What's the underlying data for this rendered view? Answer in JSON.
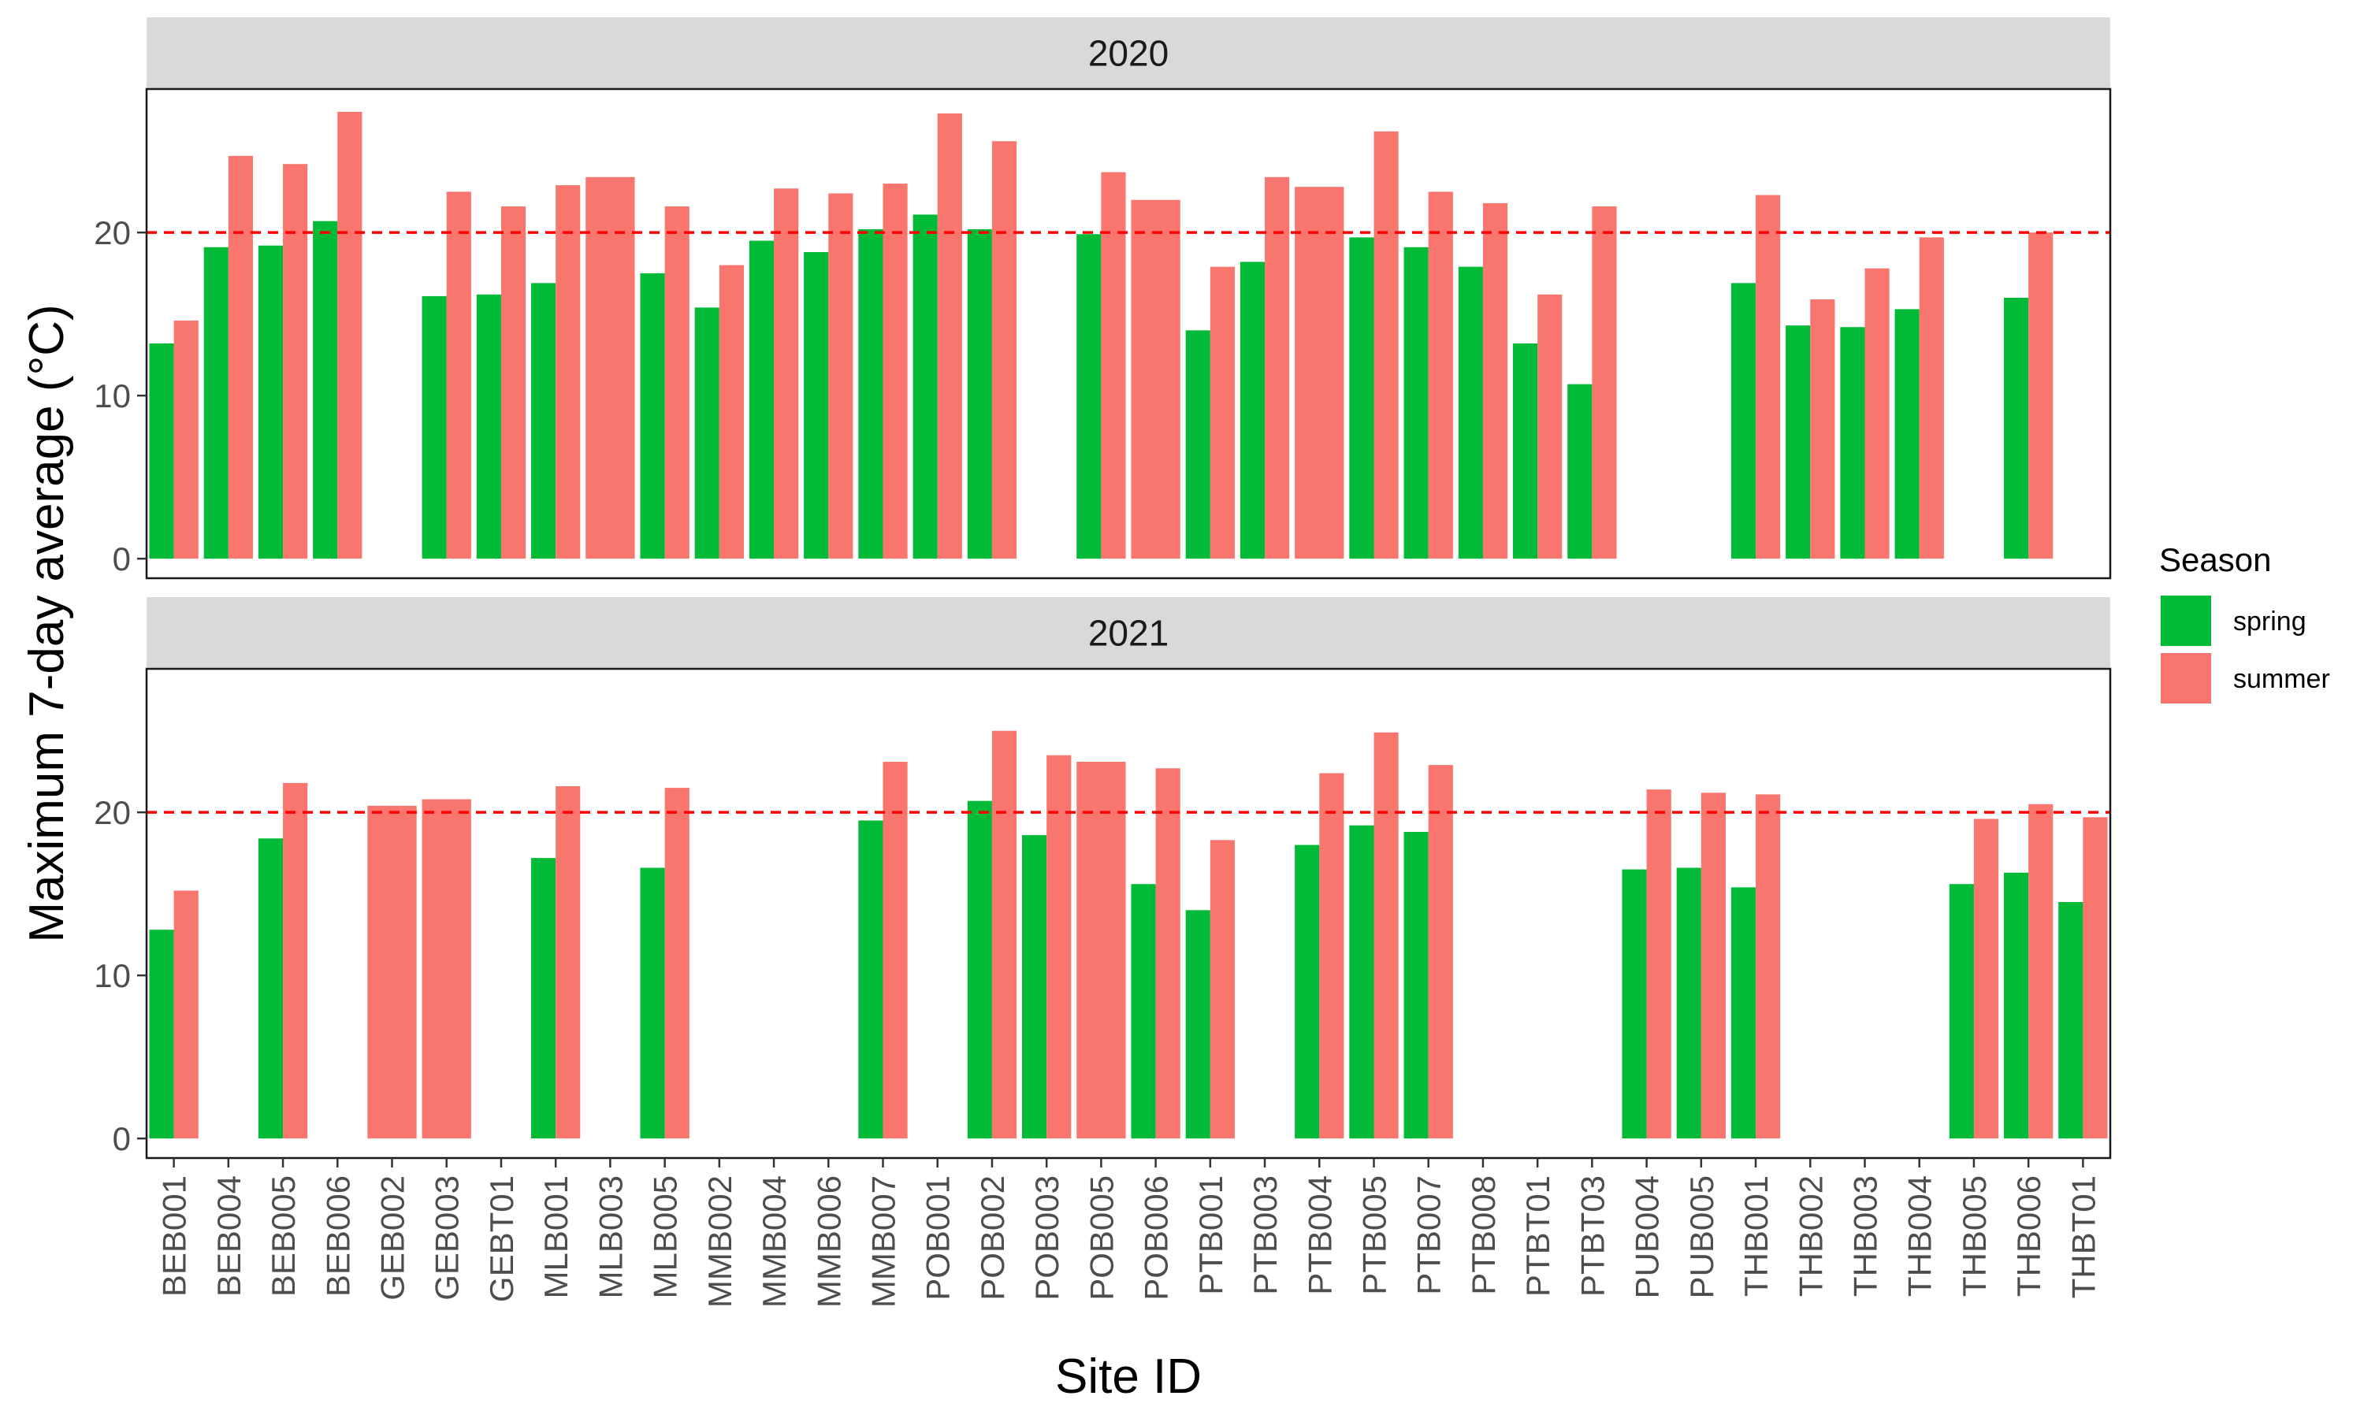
{
  "chart_data": {
    "type": "bar",
    "title": "",
    "xlabel": "Site ID",
    "ylabel": "Maximum 7-day average (°C)",
    "ylim": [
      -1.2,
      28.8
    ],
    "yticks": [
      0,
      10,
      20
    ],
    "reference_line": {
      "y": 20,
      "color": "#ff0000",
      "style": "dashed"
    },
    "legend": {
      "title": "Season",
      "placement": "right",
      "items": [
        {
          "name": "spring",
          "color": "#00ba38"
        },
        {
          "name": "summer",
          "color": "#f8766d"
        }
      ]
    },
    "categories": [
      "BEB001",
      "BEB004",
      "BEB005",
      "BEB006",
      "GEB002",
      "GEB003",
      "GEBT01",
      "MLB001",
      "MLB003",
      "MLB005",
      "MMB002",
      "MMB004",
      "MMB006",
      "MMB007",
      "POB001",
      "POB002",
      "POB003",
      "POB005",
      "POB006",
      "PTB001",
      "PTB003",
      "PTB004",
      "PTB005",
      "PTB007",
      "PTB008",
      "PTBT01",
      "PTBT03",
      "PUB004",
      "PUB005",
      "THB001",
      "THB002",
      "THB003",
      "THB004",
      "THB005",
      "THB006",
      "THBT01"
    ],
    "panels": [
      {
        "label": "2020",
        "series": [
          {
            "name": "spring",
            "values": [
              13.2,
              19.1,
              19.2,
              20.7,
              null,
              16.1,
              16.2,
              16.9,
              null,
              17.5,
              15.4,
              19.5,
              18.8,
              20.2,
              21.1,
              20.2,
              null,
              19.9,
              null,
              14.0,
              18.2,
              null,
              19.7,
              19.1,
              17.9,
              13.2,
              10.7,
              null,
              null,
              16.9,
              14.3,
              14.2,
              15.3,
              null,
              16.0,
              null
            ]
          },
          {
            "name": "summer",
            "values": [
              14.6,
              24.7,
              24.2,
              27.4,
              null,
              22.5,
              21.6,
              22.9,
              23.4,
              21.6,
              18.0,
              22.7,
              22.4,
              23.0,
              27.3,
              25.6,
              null,
              23.7,
              22.0,
              17.9,
              23.4,
              22.8,
              26.2,
              22.5,
              21.8,
              16.2,
              21.6,
              null,
              null,
              22.3,
              15.9,
              17.8,
              19.7,
              null,
              20.0,
              null
            ]
          }
        ]
      },
      {
        "label": "2021",
        "series": [
          {
            "name": "spring",
            "values": [
              12.8,
              null,
              18.4,
              null,
              null,
              null,
              null,
              17.2,
              null,
              16.6,
              null,
              null,
              null,
              19.5,
              null,
              20.7,
              18.6,
              null,
              15.6,
              14.0,
              null,
              18.0,
              19.2,
              18.8,
              null,
              null,
              null,
              16.5,
              16.6,
              15.4,
              null,
              null,
              null,
              15.6,
              16.3,
              14.5
            ]
          },
          {
            "name": "summer",
            "values": [
              15.2,
              null,
              21.8,
              null,
              20.4,
              20.8,
              null,
              21.6,
              null,
              21.5,
              null,
              null,
              null,
              23.1,
              null,
              25.0,
              23.5,
              23.1,
              22.7,
              18.3,
              null,
              22.4,
              24.9,
              22.9,
              null,
              null,
              null,
              21.4,
              21.2,
              21.1,
              null,
              null,
              null,
              19.6,
              20.5,
              19.7
            ]
          }
        ]
      }
    ]
  }
}
